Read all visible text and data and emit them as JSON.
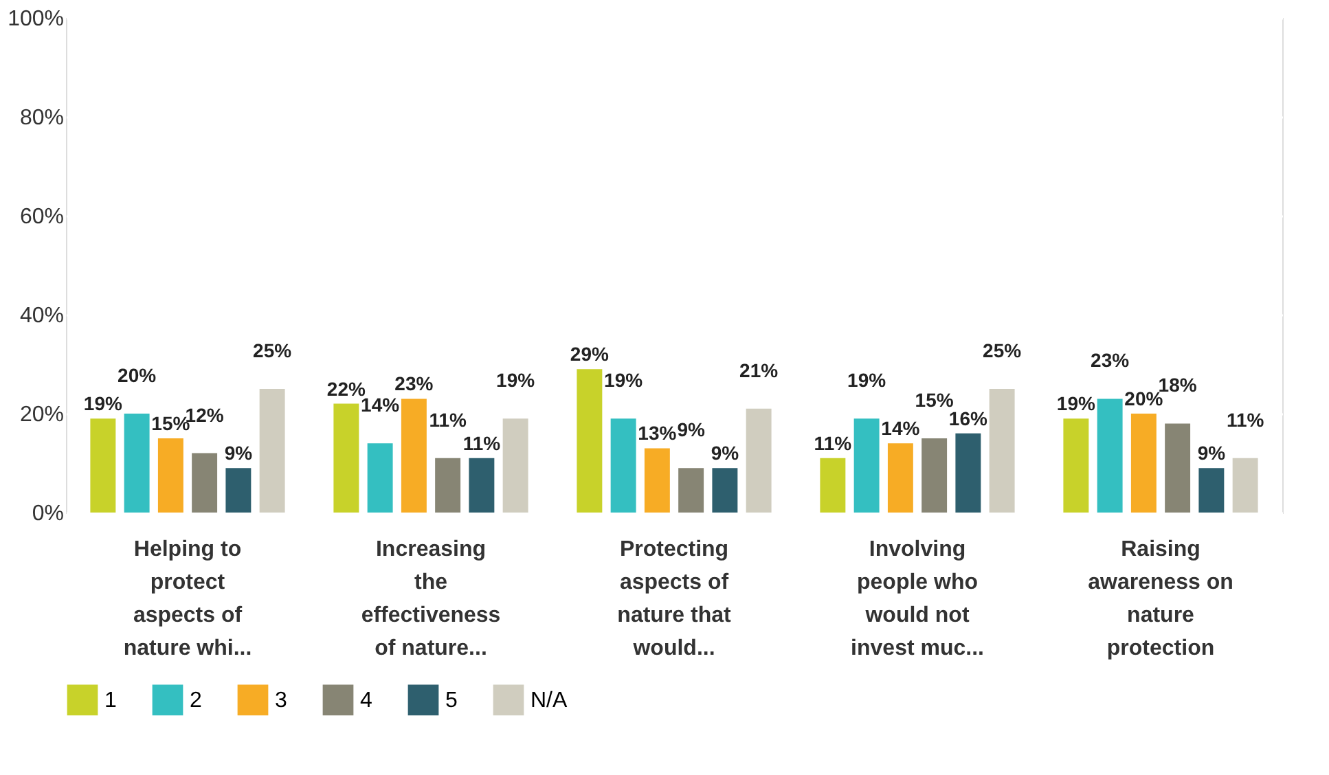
{
  "chart_data": {
    "type": "bar",
    "categories": [
      "Helping to protect aspects of nature whi...",
      "Increasing the effectiveness of nature...",
      "Protecting aspects of nature that would...",
      "Involving people who would not invest muc...",
      "Raising awareness on nature protection"
    ],
    "series": [
      {
        "name": "1",
        "color": "#c8d22a",
        "values": [
          19,
          22,
          29,
          11,
          19
        ],
        "value_labels": [
          "19%",
          "22%",
          "29%",
          "11%",
          "19%"
        ]
      },
      {
        "name": "2",
        "color": "#34bfc1",
        "values": [
          20,
          14,
          19,
          19,
          23
        ],
        "value_labels": [
          "20%",
          "14%",
          "19%",
          "19%",
          "23%"
        ]
      },
      {
        "name": "3",
        "color": "#f7ac25",
        "values": [
          15,
          23,
          13,
          14,
          20
        ],
        "value_labels": [
          "15%",
          "23%",
          "13%",
          "14%",
          "20%"
        ]
      },
      {
        "name": "4",
        "color": "#878574",
        "values": [
          12,
          11,
          9,
          15,
          18
        ],
        "value_labels": [
          "12%",
          "11%",
          "9%",
          "15%",
          "18%"
        ]
      },
      {
        "name": "5",
        "color": "#2e5f6e",
        "values": [
          9,
          11,
          9,
          16,
          9
        ],
        "value_labels": [
          "9%",
          "11%",
          "9%",
          "16%",
          "9%"
        ]
      },
      {
        "name": "N/A",
        "color": "#d0cdbf",
        "values": [
          25,
          19,
          21,
          25,
          11
        ],
        "value_labels": [
          "25%",
          "19%",
          "21%",
          "25%",
          "11%"
        ]
      }
    ],
    "ylim": [
      0,
      100
    ],
    "yticks": [
      {
        "value": 0,
        "label": "0%"
      },
      {
        "value": 20,
        "label": "20%"
      },
      {
        "value": 40,
        "label": "40%"
      },
      {
        "value": 60,
        "label": "60%"
      },
      {
        "value": 80,
        "label": "80%"
      },
      {
        "value": 100,
        "label": "100%"
      }
    ],
    "grid": "y",
    "legend": "bottom"
  }
}
